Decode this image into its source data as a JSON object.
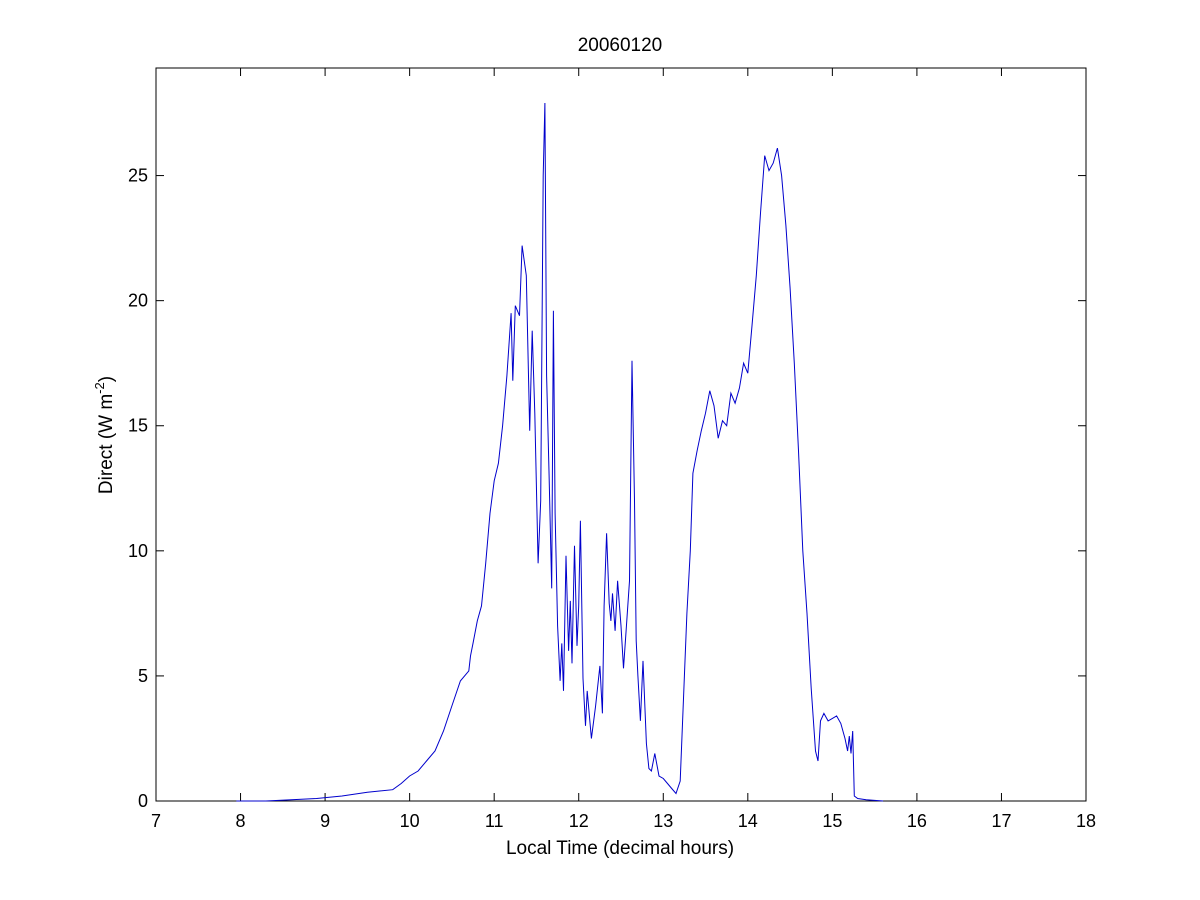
{
  "chart_data": {
    "type": "line",
    "title": "20060120",
    "xlabel": "Local Time (decimal hours)",
    "ylabel": {
      "main": "Direct (W m",
      "superscript": "-2",
      "close": ")"
    },
    "xlim": [
      7,
      18
    ],
    "ylim": [
      0,
      29.3
    ],
    "xticks": [
      7,
      8,
      9,
      10,
      11,
      12,
      13,
      14,
      15,
      16,
      17,
      18
    ],
    "yticks": [
      0,
      5,
      10,
      15,
      20,
      25
    ],
    "grid": false,
    "line_color": "#0000cc",
    "series": [
      {
        "x": [
          7.95,
          8.3,
          8.6,
          8.9,
          9.2,
          9.5,
          9.8,
          9.9,
          10.0,
          10.1,
          10.2,
          10.3,
          10.4,
          10.5,
          10.6,
          10.7,
          10.72,
          10.75,
          10.8,
          10.85,
          10.9,
          10.95,
          11.0,
          11.05,
          11.1,
          11.15,
          11.2,
          11.22,
          11.25,
          11.3,
          11.33,
          11.38,
          11.42,
          11.45,
          11.48,
          11.52,
          11.55,
          11.58,
          11.6,
          11.62,
          11.65,
          11.68,
          11.7,
          11.72,
          11.75,
          11.78,
          11.8,
          11.82,
          11.85,
          11.88,
          11.9,
          11.92,
          11.95,
          11.98,
          12.0,
          12.02,
          12.05,
          12.08,
          12.1,
          12.15,
          12.2,
          12.25,
          12.28,
          12.3,
          12.33,
          12.36,
          12.38,
          12.4,
          12.43,
          12.46,
          12.5,
          12.53,
          12.56,
          12.6,
          12.63,
          12.66,
          12.68,
          12.7,
          12.73,
          12.76,
          12.8,
          12.83,
          12.86,
          12.9,
          12.95,
          13.0,
          13.05,
          13.1,
          13.15,
          13.2,
          13.25,
          13.28,
          13.32,
          13.35,
          13.4,
          13.45,
          13.5,
          13.55,
          13.6,
          13.65,
          13.7,
          13.75,
          13.8,
          13.85,
          13.9,
          13.95,
          14.0,
          14.05,
          14.1,
          14.15,
          14.2,
          14.25,
          14.3,
          14.35,
          14.4,
          14.45,
          14.5,
          14.55,
          14.6,
          14.65,
          14.7,
          14.75,
          14.8,
          14.83,
          14.86,
          14.9,
          14.95,
          15.0,
          15.05,
          15.1,
          15.15,
          15.18,
          15.2,
          15.22,
          15.24,
          15.26,
          15.3,
          15.4,
          15.6
        ],
        "y": [
          0.0,
          0.0,
          0.05,
          0.1,
          0.2,
          0.35,
          0.45,
          0.7,
          1.0,
          1.2,
          1.6,
          2.0,
          2.8,
          3.8,
          4.8,
          5.2,
          5.8,
          6.3,
          7.2,
          7.8,
          9.5,
          11.5,
          12.8,
          13.5,
          15.0,
          17.0,
          19.5,
          16.8,
          19.8,
          19.4,
          22.2,
          21.0,
          14.8,
          18.8,
          15.5,
          9.5,
          12.0,
          25.0,
          27.9,
          17.0,
          13.0,
          8.5,
          19.6,
          11.5,
          7.0,
          4.8,
          6.3,
          4.4,
          9.8,
          6.0,
          8.0,
          5.5,
          10.2,
          6.2,
          7.8,
          11.2,
          4.9,
          3.0,
          4.4,
          2.5,
          3.8,
          5.4,
          3.5,
          7.8,
          10.7,
          7.9,
          7.2,
          8.3,
          6.8,
          8.8,
          7.0,
          5.3,
          6.8,
          8.8,
          17.6,
          12.0,
          6.4,
          5.0,
          3.2,
          5.6,
          2.3,
          1.3,
          1.2,
          1.9,
          1.0,
          0.9,
          0.7,
          0.5,
          0.3,
          0.8,
          5.0,
          7.5,
          10.0,
          13.1,
          14.0,
          14.8,
          15.5,
          16.4,
          15.8,
          14.5,
          15.2,
          15.0,
          16.3,
          15.9,
          16.5,
          17.5,
          17.1,
          19.0,
          21.0,
          23.5,
          25.8,
          25.2,
          25.5,
          26.1,
          25.0,
          23.0,
          20.5,
          17.5,
          14.0,
          10.0,
          7.5,
          4.5,
          2.0,
          1.6,
          3.2,
          3.5,
          3.2,
          3.3,
          3.4,
          3.1,
          2.5,
          2.0,
          2.6,
          1.9,
          2.8,
          0.2,
          0.1,
          0.05,
          0.0
        ]
      }
    ]
  }
}
